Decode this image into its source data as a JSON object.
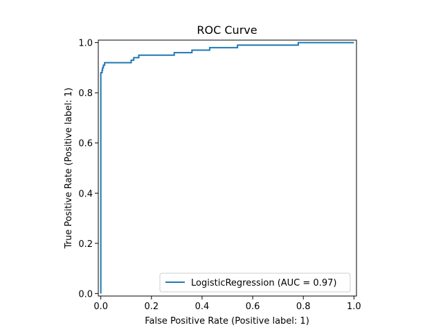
{
  "chart_data": {
    "type": "line",
    "title": "ROC Curve",
    "xlabel": "False Positive Rate (Positive label: 1)",
    "ylabel": "True Positive Rate (Positive label: 1)",
    "xlim": [
      -0.01,
      1.01
    ],
    "ylim": [
      -0.01,
      1.01
    ],
    "xticks": [
      0.0,
      0.2,
      0.4,
      0.6,
      0.8,
      1.0
    ],
    "xtick_labels": [
      "0.0",
      "0.2",
      "0.4",
      "0.6",
      "0.8",
      "1.0"
    ],
    "yticks": [
      0.0,
      0.2,
      0.4,
      0.6,
      0.8,
      1.0
    ],
    "ytick_labels": [
      "0.0",
      "0.2",
      "0.4",
      "0.6",
      "0.8",
      "1.0"
    ],
    "grid": false,
    "legend_position": "lower-right",
    "series": [
      {
        "name": "LogisticRegression (AUC = 0.97)",
        "color": "#1f77b4",
        "x": [
          0.0,
          0.0,
          0.005,
          0.005,
          0.007,
          0.007,
          0.01,
          0.01,
          0.015,
          0.015,
          0.12,
          0.12,
          0.13,
          0.13,
          0.15,
          0.15,
          0.29,
          0.29,
          0.36,
          0.36,
          0.43,
          0.43,
          0.54,
          0.54,
          0.78,
          0.78,
          1.0
        ],
        "y": [
          0.0,
          0.88,
          0.88,
          0.89,
          0.89,
          0.9,
          0.9,
          0.91,
          0.91,
          0.92,
          0.92,
          0.93,
          0.93,
          0.94,
          0.94,
          0.95,
          0.95,
          0.96,
          0.96,
          0.97,
          0.97,
          0.98,
          0.98,
          0.99,
          0.99,
          1.0,
          1.0
        ]
      }
    ]
  }
}
